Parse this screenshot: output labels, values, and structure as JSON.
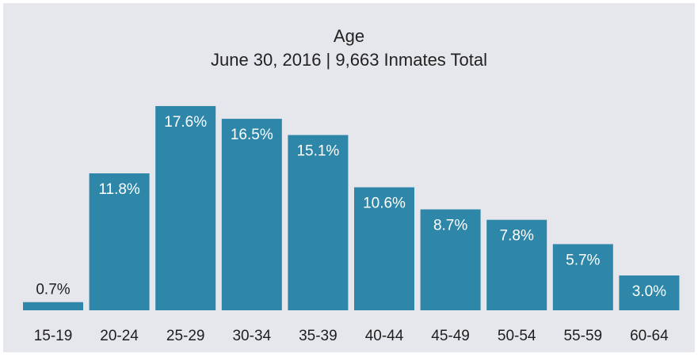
{
  "chart_data": {
    "type": "bar",
    "title": "Age",
    "subtitle": "June 30, 2016 | 9,663 Inmates Total",
    "xlabel": "",
    "ylabel": "",
    "categories": [
      "15-19",
      "20-24",
      "25-29",
      "30-34",
      "35-39",
      "40-44",
      "45-49",
      "50-54",
      "55-59",
      "60-64"
    ],
    "values": [
      0.7,
      11.8,
      17.6,
      16.5,
      15.1,
      10.6,
      8.7,
      7.8,
      5.7,
      3.0
    ],
    "value_labels": [
      "0.7%",
      "11.8%",
      "17.6%",
      "16.5%",
      "15.1%",
      "10.6%",
      "8.7%",
      "7.8%",
      "5.7%",
      "3.0%"
    ],
    "ylim": [
      0,
      17.6
    ],
    "grid": false,
    "legend": "none",
    "bar_color": "#2e86a8",
    "label_color_inside": "#ffffff",
    "label_color_outside": "#1e1e1e",
    "background_color": "#e6e7ec"
  }
}
